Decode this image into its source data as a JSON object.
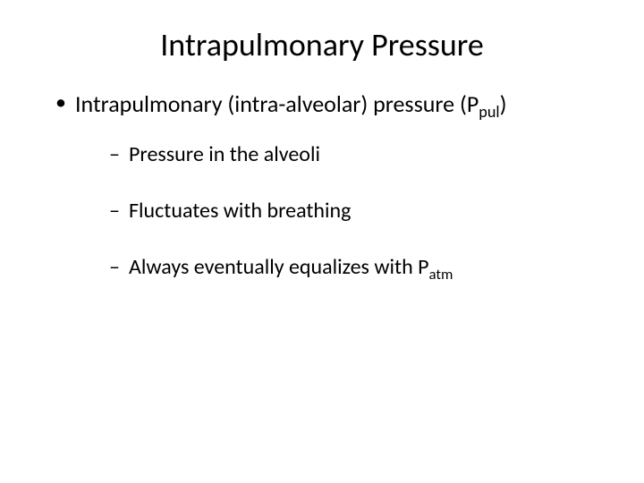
{
  "background_color": "#ffffff",
  "text_color": "#000000",
  "font_family": "Calibri, Arial, sans-serif",
  "title": {
    "text": "Intrapulmonary Pressure",
    "fontsize": 36,
    "align": "center",
    "weight": "400"
  },
  "bullets": {
    "level1": {
      "fontsize": 26,
      "marker": "•",
      "items": [
        {
          "text_prefix": "Intrapulmonary (intra-alveolar) pressure (P",
          "subscript": "pul",
          "text_suffix": ")"
        }
      ]
    },
    "level2": {
      "fontsize": 24,
      "marker": "–",
      "items": [
        {
          "text_prefix": "Pressure in the alveoli",
          "subscript": "",
          "text_suffix": ""
        },
        {
          "text_prefix": "Fluctuates with breathing",
          "subscript": "",
          "text_suffix": ""
        },
        {
          "text_prefix": "Always eventually equalizes with P",
          "subscript": "atm",
          "text_suffix": ""
        }
      ]
    }
  }
}
